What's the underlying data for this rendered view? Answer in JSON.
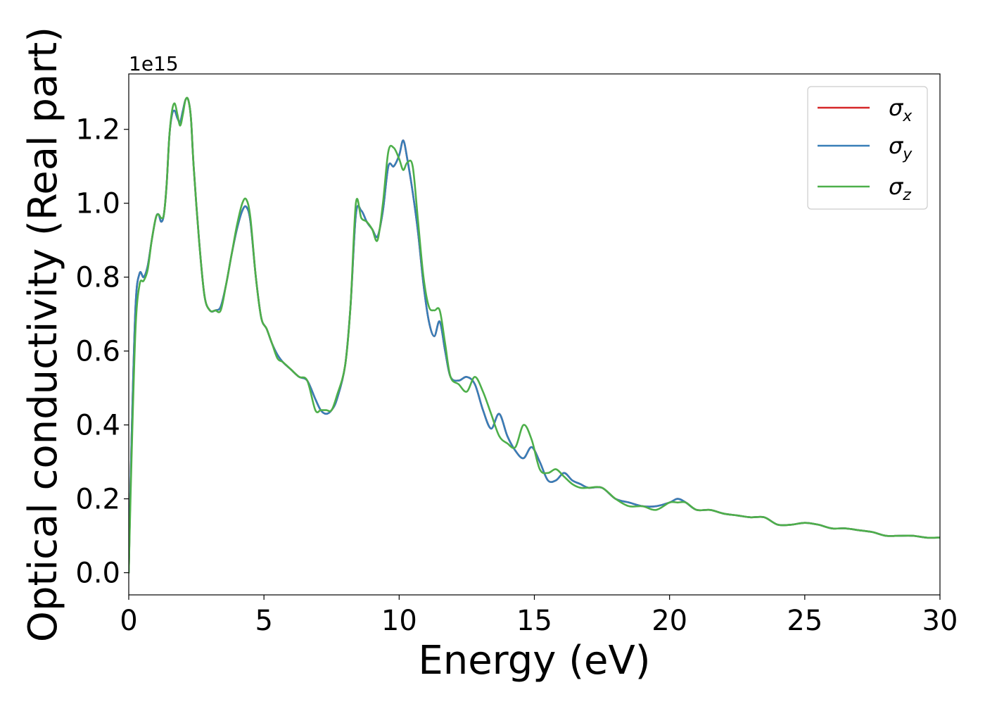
{
  "chart_data": {
    "type": "line",
    "xlabel": "Energy (eV)",
    "ylabel": "Optical conductivity (Real part)",
    "y_offset_text": "1e15",
    "xlim": [
      0,
      30
    ],
    "ylim": [
      -0.06,
      1.35
    ],
    "x_ticks": [
      0,
      5,
      10,
      15,
      20,
      25,
      30
    ],
    "x_tick_labels": [
      "0",
      "5",
      "10",
      "15",
      "20",
      "25",
      "30"
    ],
    "y_ticks": [
      0.0,
      0.2,
      0.4,
      0.6,
      0.8,
      1.0,
      1.2
    ],
    "y_tick_labels": [
      "0.0",
      "0.2",
      "0.4",
      "0.6",
      "0.8",
      "1.0",
      "1.2"
    ],
    "grid": false,
    "legend_position": "top-right",
    "series": [
      {
        "name": "σx",
        "legend_base": "σ",
        "legend_sub": "x",
        "color": "#d62728",
        "x": [
          0,
          0.1,
          0.25,
          0.4,
          0.55,
          0.7,
          0.85,
          1.0,
          1.1,
          1.2,
          1.3,
          1.4,
          1.5,
          1.6,
          1.7,
          1.8,
          1.9,
          2.0,
          2.1,
          2.2,
          2.3,
          2.4,
          2.6,
          2.8,
          3.0,
          3.2,
          3.4,
          3.6,
          3.8,
          4.0,
          4.2,
          4.35,
          4.5,
          4.7,
          4.9,
          5.1,
          5.3,
          5.5,
          5.7,
          6.0,
          6.3,
          6.6,
          6.9,
          7.1,
          7.3,
          7.5,
          7.7,
          8.0,
          8.2,
          8.4,
          8.6,
          8.8,
          9.0,
          9.2,
          9.4,
          9.6,
          9.8,
          10.0,
          10.15,
          10.3,
          10.5,
          10.7,
          10.9,
          11.1,
          11.3,
          11.5,
          11.7,
          11.9,
          12.2,
          12.5,
          12.8,
          13.1,
          13.4,
          13.7,
          14.0,
          14.3,
          14.6,
          14.9,
          15.2,
          15.5,
          15.8,
          16.1,
          16.4,
          16.7,
          17.0,
          17.5,
          18.0,
          18.5,
          19.0,
          19.5,
          20.0,
          20.3,
          20.6,
          21.0,
          21.5,
          22.0,
          22.5,
          23.0,
          23.5,
          24.0,
          24.5,
          25.0,
          25.5,
          26.0,
          26.5,
          27.0,
          27.5,
          28.0,
          28.5,
          29.0,
          29.5,
          30.0
        ],
        "y": [
          0.0,
          0.35,
          0.72,
          0.81,
          0.8,
          0.83,
          0.9,
          0.96,
          0.97,
          0.95,
          0.97,
          1.05,
          1.18,
          1.24,
          1.25,
          1.23,
          1.22,
          1.25,
          1.28,
          1.28,
          1.23,
          1.1,
          0.9,
          0.75,
          0.71,
          0.71,
          0.72,
          0.78,
          0.86,
          0.93,
          0.98,
          0.99,
          0.95,
          0.8,
          0.69,
          0.66,
          0.62,
          0.59,
          0.57,
          0.55,
          0.53,
          0.52,
          0.47,
          0.44,
          0.43,
          0.44,
          0.47,
          0.56,
          0.72,
          0.97,
          0.98,
          0.95,
          0.93,
          0.91,
          0.98,
          1.1,
          1.1,
          1.13,
          1.17,
          1.12,
          1.03,
          0.92,
          0.78,
          0.68,
          0.64,
          0.68,
          0.6,
          0.53,
          0.52,
          0.53,
          0.51,
          0.44,
          0.39,
          0.43,
          0.37,
          0.33,
          0.31,
          0.34,
          0.3,
          0.25,
          0.25,
          0.27,
          0.25,
          0.24,
          0.23,
          0.23,
          0.2,
          0.19,
          0.18,
          0.18,
          0.19,
          0.2,
          0.19,
          0.17,
          0.17,
          0.16,
          0.155,
          0.15,
          0.15,
          0.13,
          0.13,
          0.135,
          0.13,
          0.12,
          0.12,
          0.115,
          0.11,
          0.1,
          0.1,
          0.1,
          0.095,
          0.095
        ]
      },
      {
        "name": "σy",
        "legend_base": "σ",
        "legend_sub": "y",
        "color": "#377eb8",
        "x": [
          0,
          0.1,
          0.25,
          0.4,
          0.55,
          0.7,
          0.85,
          1.0,
          1.1,
          1.2,
          1.3,
          1.4,
          1.5,
          1.6,
          1.7,
          1.8,
          1.9,
          2.0,
          2.1,
          2.2,
          2.3,
          2.4,
          2.6,
          2.8,
          3.0,
          3.2,
          3.4,
          3.6,
          3.8,
          4.0,
          4.2,
          4.35,
          4.5,
          4.7,
          4.9,
          5.1,
          5.3,
          5.5,
          5.7,
          6.0,
          6.3,
          6.6,
          6.9,
          7.1,
          7.3,
          7.5,
          7.7,
          8.0,
          8.2,
          8.4,
          8.6,
          8.8,
          9.0,
          9.2,
          9.4,
          9.6,
          9.8,
          10.0,
          10.15,
          10.3,
          10.5,
          10.7,
          10.9,
          11.1,
          11.3,
          11.5,
          11.7,
          11.9,
          12.2,
          12.5,
          12.8,
          13.1,
          13.4,
          13.7,
          14.0,
          14.3,
          14.6,
          14.9,
          15.2,
          15.5,
          15.8,
          16.1,
          16.4,
          16.7,
          17.0,
          17.5,
          18.0,
          18.5,
          19.0,
          19.5,
          20.0,
          20.3,
          20.6,
          21.0,
          21.5,
          22.0,
          22.5,
          23.0,
          23.5,
          24.0,
          24.5,
          25.0,
          25.5,
          26.0,
          26.5,
          27.0,
          27.5,
          28.0,
          28.5,
          29.0,
          29.5,
          30.0
        ],
        "y": [
          0.0,
          0.35,
          0.72,
          0.81,
          0.8,
          0.83,
          0.9,
          0.96,
          0.97,
          0.95,
          0.97,
          1.05,
          1.18,
          1.24,
          1.25,
          1.23,
          1.22,
          1.25,
          1.28,
          1.28,
          1.23,
          1.1,
          0.9,
          0.75,
          0.71,
          0.71,
          0.72,
          0.78,
          0.86,
          0.93,
          0.98,
          0.99,
          0.95,
          0.8,
          0.69,
          0.66,
          0.62,
          0.59,
          0.57,
          0.55,
          0.53,
          0.52,
          0.47,
          0.44,
          0.43,
          0.44,
          0.47,
          0.56,
          0.72,
          0.97,
          0.98,
          0.95,
          0.93,
          0.91,
          0.98,
          1.1,
          1.1,
          1.13,
          1.17,
          1.12,
          1.03,
          0.92,
          0.78,
          0.68,
          0.64,
          0.68,
          0.6,
          0.53,
          0.52,
          0.53,
          0.51,
          0.44,
          0.39,
          0.43,
          0.37,
          0.33,
          0.31,
          0.34,
          0.3,
          0.25,
          0.25,
          0.27,
          0.25,
          0.24,
          0.23,
          0.23,
          0.2,
          0.19,
          0.18,
          0.18,
          0.19,
          0.2,
          0.19,
          0.17,
          0.17,
          0.16,
          0.155,
          0.15,
          0.15,
          0.13,
          0.13,
          0.135,
          0.13,
          0.12,
          0.12,
          0.115,
          0.11,
          0.1,
          0.1,
          0.1,
          0.095,
          0.095
        ]
      },
      {
        "name": "σz",
        "legend_base": "σ",
        "legend_sub": "z",
        "color": "#4daf4a",
        "x": [
          0,
          0.1,
          0.25,
          0.4,
          0.55,
          0.7,
          0.85,
          1.0,
          1.1,
          1.2,
          1.3,
          1.4,
          1.5,
          1.6,
          1.7,
          1.8,
          1.9,
          2.0,
          2.1,
          2.2,
          2.3,
          2.4,
          2.6,
          2.8,
          3.0,
          3.2,
          3.4,
          3.6,
          3.8,
          4.0,
          4.2,
          4.35,
          4.5,
          4.7,
          4.9,
          5.1,
          5.3,
          5.5,
          5.7,
          6.0,
          6.3,
          6.6,
          6.9,
          7.1,
          7.3,
          7.5,
          7.7,
          8.0,
          8.2,
          8.4,
          8.6,
          8.8,
          9.0,
          9.2,
          9.4,
          9.6,
          9.8,
          10.0,
          10.15,
          10.3,
          10.5,
          10.7,
          10.9,
          11.1,
          11.3,
          11.5,
          11.7,
          11.9,
          12.2,
          12.5,
          12.8,
          13.1,
          13.4,
          13.7,
          14.0,
          14.3,
          14.6,
          14.9,
          15.2,
          15.5,
          15.8,
          16.1,
          16.4,
          16.7,
          17.0,
          17.5,
          18.0,
          18.5,
          19.0,
          19.5,
          20.0,
          20.3,
          20.6,
          21.0,
          21.5,
          22.0,
          22.5,
          23.0,
          23.5,
          24.0,
          24.5,
          25.0,
          25.5,
          26.0,
          26.5,
          27.0,
          27.5,
          28.0,
          28.5,
          29.0,
          29.5,
          30.0
        ],
        "y": [
          0.0,
          0.3,
          0.66,
          0.78,
          0.79,
          0.82,
          0.9,
          0.96,
          0.97,
          0.96,
          0.97,
          1.05,
          1.18,
          1.25,
          1.27,
          1.24,
          1.21,
          1.24,
          1.28,
          1.28,
          1.23,
          1.1,
          0.9,
          0.75,
          0.71,
          0.71,
          0.71,
          0.78,
          0.86,
          0.94,
          1.0,
          1.01,
          0.96,
          0.8,
          0.69,
          0.66,
          0.62,
          0.58,
          0.57,
          0.55,
          0.53,
          0.52,
          0.44,
          0.44,
          0.44,
          0.44,
          0.48,
          0.56,
          0.72,
          1.0,
          0.96,
          0.95,
          0.93,
          0.9,
          1.0,
          1.14,
          1.15,
          1.12,
          1.09,
          1.11,
          1.1,
          0.95,
          0.8,
          0.72,
          0.71,
          0.71,
          0.62,
          0.53,
          0.51,
          0.49,
          0.53,
          0.49,
          0.43,
          0.37,
          0.35,
          0.34,
          0.4,
          0.36,
          0.28,
          0.27,
          0.28,
          0.26,
          0.24,
          0.23,
          0.23,
          0.23,
          0.2,
          0.18,
          0.18,
          0.17,
          0.19,
          0.19,
          0.19,
          0.17,
          0.17,
          0.16,
          0.155,
          0.15,
          0.15,
          0.13,
          0.13,
          0.135,
          0.13,
          0.12,
          0.12,
          0.115,
          0.11,
          0.1,
          0.1,
          0.1,
          0.095,
          0.095
        ]
      }
    ]
  }
}
